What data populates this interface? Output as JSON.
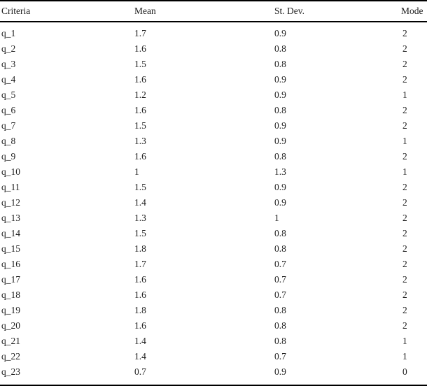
{
  "table": {
    "columns": {
      "criteria": "Criteria",
      "mean": "Mean",
      "st_dev": "St. Dev.",
      "mode": "Mode"
    },
    "rows": [
      {
        "criteria": "q_1",
        "mean": "1.7",
        "st_dev": "0.9",
        "mode": "2"
      },
      {
        "criteria": "q_2",
        "mean": "1.6",
        "st_dev": "0.8",
        "mode": "2"
      },
      {
        "criteria": "q_3",
        "mean": "1.5",
        "st_dev": "0.8",
        "mode": "2"
      },
      {
        "criteria": "q_4",
        "mean": "1.6",
        "st_dev": "0.9",
        "mode": "2"
      },
      {
        "criteria": "q_5",
        "mean": "1.2",
        "st_dev": "0.9",
        "mode": "1"
      },
      {
        "criteria": "q_6",
        "mean": "1.6",
        "st_dev": "0.8",
        "mode": "2"
      },
      {
        "criteria": "q_7",
        "mean": "1.5",
        "st_dev": "0.9",
        "mode": "2"
      },
      {
        "criteria": "q_8",
        "mean": "1.3",
        "st_dev": "0.9",
        "mode": "1"
      },
      {
        "criteria": "q_9",
        "mean": "1.6",
        "st_dev": "0.8",
        "mode": "2"
      },
      {
        "criteria": "q_10",
        "mean": "1",
        "st_dev": "1.3",
        "mode": "1"
      },
      {
        "criteria": "q_11",
        "mean": "1.5",
        "st_dev": "0.9",
        "mode": "2"
      },
      {
        "criteria": "q_12",
        "mean": "1.4",
        "st_dev": "0.9",
        "mode": "2"
      },
      {
        "criteria": "q_13",
        "mean": "1.3",
        "st_dev": "1",
        "mode": "2"
      },
      {
        "criteria": "q_14",
        "mean": "1.5",
        "st_dev": "0.8",
        "mode": "2"
      },
      {
        "criteria": "q_15",
        "mean": "1.8",
        "st_dev": "0.8",
        "mode": "2"
      },
      {
        "criteria": "q_16",
        "mean": "1.7",
        "st_dev": "0.7",
        "mode": "2"
      },
      {
        "criteria": "q_17",
        "mean": "1.6",
        "st_dev": "0.7",
        "mode": "2"
      },
      {
        "criteria": "q_18",
        "mean": "1.6",
        "st_dev": "0.7",
        "mode": "2"
      },
      {
        "criteria": "q_19",
        "mean": "1.8",
        "st_dev": "0.8",
        "mode": "2"
      },
      {
        "criteria": "q_20",
        "mean": "1.6",
        "st_dev": "0.8",
        "mode": "2"
      },
      {
        "criteria": "q_21",
        "mean": "1.4",
        "st_dev": "0.8",
        "mode": "1"
      },
      {
        "criteria": "q_22",
        "mean": "1.4",
        "st_dev": "0.7",
        "mode": "1"
      },
      {
        "criteria": "q_23",
        "mean": "0.7",
        "st_dev": "0.9",
        "mode": "0"
      }
    ],
    "colors": {
      "text": "#1c1c1c",
      "rule": "#000000",
      "background": "#ffffff"
    }
  }
}
